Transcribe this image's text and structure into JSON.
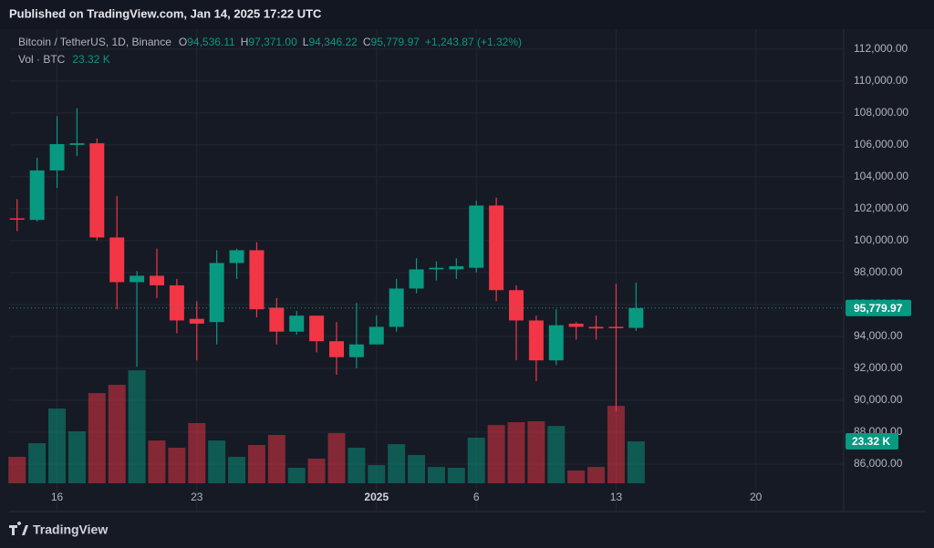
{
  "published": "Published on TradingView.com, Jan 14, 2025 17:22 UTC",
  "brand": "TradingView",
  "chart_data": {
    "type": "candlestick",
    "symbol": "Bitcoin / TetherUS, 1D, Binance",
    "ohlc_header": [
      {
        "key": "O",
        "value": "94,536.11"
      },
      {
        "key": "H",
        "value": "97,371.00"
      },
      {
        "key": "L",
        "value": "94,346.22"
      },
      {
        "key": "C",
        "value": "95,779.97"
      }
    ],
    "change": "+1,243.87 (+1.32%)",
    "volume_title": "Vol · BTC",
    "volume_label": "23.32 K",
    "last_price_label": "95,779.97",
    "up_color": "#089981",
    "down_color": "#f23645",
    "x": [
      0,
      1,
      2,
      3,
      4,
      5,
      6,
      7,
      8,
      9,
      10,
      11,
      12,
      13,
      14,
      15,
      16,
      17,
      18,
      19,
      20,
      21,
      22,
      23,
      24,
      25,
      26,
      27,
      28,
      29,
      30,
      31
    ],
    "open": [
      101400,
      101300,
      104400,
      106000,
      106100,
      100200,
      97400,
      97800,
      97200,
      95100,
      94900,
      98600,
      99400,
      95800,
      94300,
      95300,
      93700,
      92700,
      93500,
      94600,
      97000,
      98200,
      98200,
      98300,
      102200,
      96900,
      95000,
      92500,
      94800,
      94600,
      94600,
      94536.11
    ],
    "high": [
      102600,
      105200,
      107800,
      108300,
      106400,
      102800,
      98100,
      99500,
      97600,
      96200,
      99400,
      99500,
      99900,
      96400,
      95600,
      95300,
      94900,
      96100,
      95300,
      97600,
      98900,
      98700,
      98900,
      102500,
      102700,
      97200,
      95300,
      95700,
      94900,
      95300,
      97300,
      97371
    ],
    "low": [
      100600,
      101200,
      103300,
      105300,
      100000,
      95700,
      92100,
      96400,
      94200,
      92500,
      93500,
      97600,
      95200,
      93500,
      94100,
      93000,
      91600,
      92000,
      93500,
      94300,
      96700,
      97500,
      97600,
      98000,
      96200,
      92500,
      91200,
      92200,
      93800,
      93800,
      89300,
      94346.22
    ],
    "close": [
      101350,
      104400,
      106050,
      106100,
      100200,
      97400,
      97800,
      97200,
      95000,
      94800,
      98600,
      99400,
      95700,
      94300,
      95300,
      93700,
      92700,
      93500,
      94600,
      97000,
      98200,
      98300,
      98400,
      102200,
      96900,
      95000,
      92500,
      94700,
      94600,
      94500,
      94536.11,
      95779.97
    ],
    "volume": [
      14.7,
      22.3,
      41.6,
      28.9,
      50.2,
      54.8,
      62.9,
      23.8,
      19.8,
      33.5,
      23.8,
      14.7,
      21.3,
      26.9,
      8.6,
      13.7,
      27.9,
      19.8,
      10.1,
      21.8,
      15.7,
      9.1,
      8.6,
      25.4,
      32.4,
      34.0,
      34.5,
      31.9,
      7.1,
      9.1,
      43.1,
      23.32
    ],
    "xlim": [
      -0.4,
      41.4
    ],
    "xticks": [
      {
        "value": 2,
        "label": "16"
      },
      {
        "value": 9,
        "label": "23"
      },
      {
        "value": 18,
        "label": "2025"
      },
      {
        "value": 23,
        "label": "6"
      },
      {
        "value": 30,
        "label": "13"
      },
      {
        "value": 37,
        "label": "20"
      }
    ],
    "ylim": [
      84800,
      113250
    ],
    "yticks": [
      {
        "value": 86000,
        "label": "86,000.00"
      },
      {
        "value": 88000,
        "label": "88,000.00"
      },
      {
        "value": 90000,
        "label": "90,000.00"
      },
      {
        "value": 92000,
        "label": "92,000.00"
      },
      {
        "value": 94000,
        "label": "94,000.00"
      },
      {
        "value": 96000,
        "label": "96,000.00"
      },
      {
        "value": 98000,
        "label": "98,000.00"
      },
      {
        "value": 100000,
        "label": "100,000.00"
      },
      {
        "value": 102000,
        "label": "102,000.00"
      },
      {
        "value": 104000,
        "label": "104,000.00"
      },
      {
        "value": 106000,
        "label": "106,000.00"
      },
      {
        "value": 108000,
        "label": "108,000.00"
      },
      {
        "value": 110000,
        "label": "110,000.00"
      },
      {
        "value": 112000,
        "label": "112,000.00"
      }
    ],
    "grid": true
  }
}
